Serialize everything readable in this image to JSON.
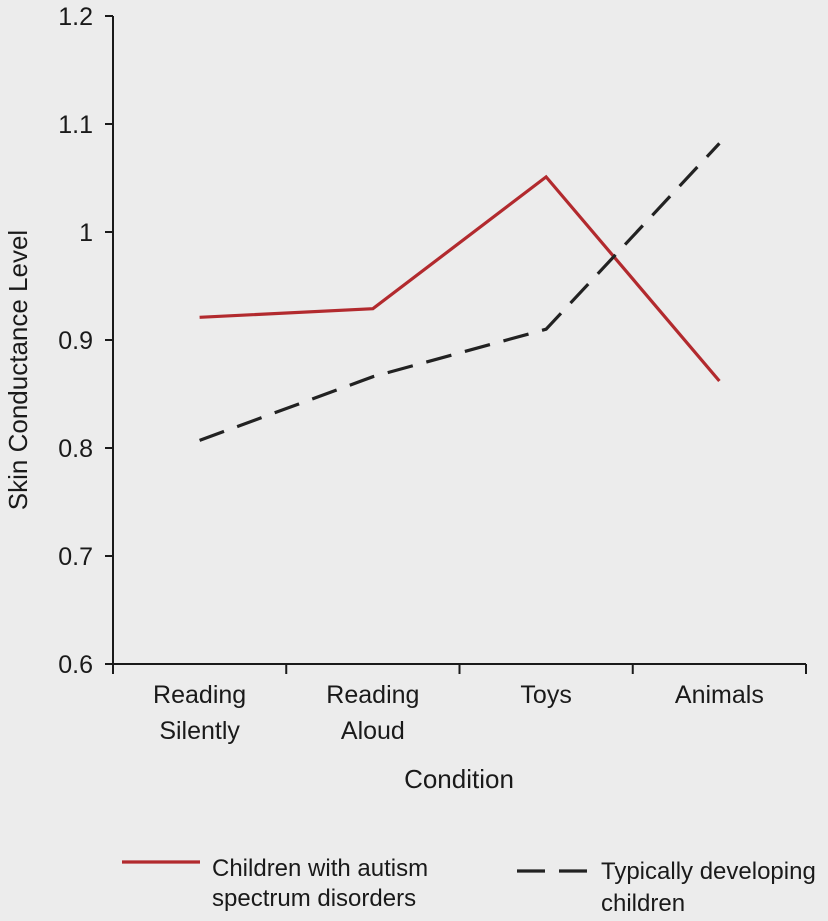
{
  "chart_data": {
    "type": "line",
    "title": "",
    "xlabel": "Condition",
    "ylabel": "Skin Conductance Level",
    "categories": [
      [
        "Reading",
        "Silently"
      ],
      [
        "Reading",
        "Aloud"
      ],
      [
        "Toys"
      ],
      [
        "Animals"
      ]
    ],
    "ylim": [
      0.6,
      1.2
    ],
    "yticks": [
      "0.6",
      "0.7",
      "0.8",
      "0.9",
      "1",
      "1.1",
      "1.2"
    ],
    "grid": false,
    "legend_position": "bottom",
    "series": [
      {
        "name": [
          "Children with autism",
          "spectrum disorders"
        ],
        "values": [
          0.921,
          0.929,
          1.051,
          0.862
        ],
        "color": "#b22a2e",
        "line_style": "solid"
      },
      {
        "name": [
          "Typically developing",
          "children"
        ],
        "values": [
          0.807,
          0.866,
          0.91,
          1.082
        ],
        "color": "#222222",
        "line_style": "dashed"
      }
    ]
  }
}
